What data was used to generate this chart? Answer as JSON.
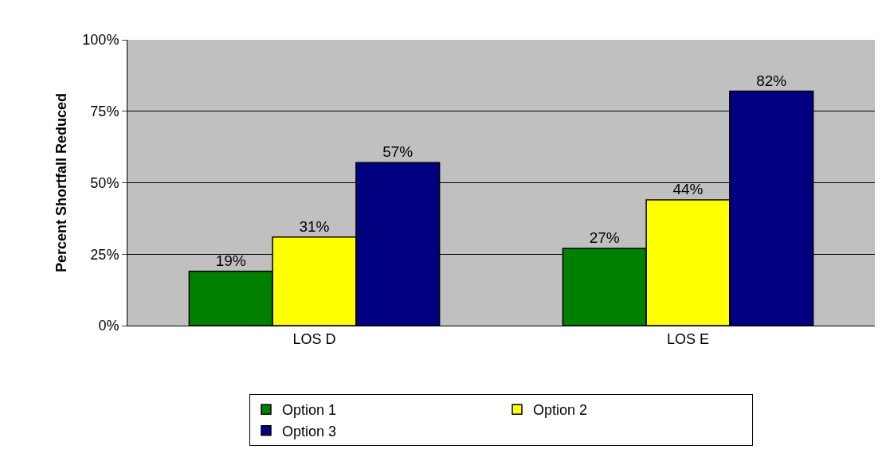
{
  "chart_data": {
    "type": "bar",
    "ylabel": "Percent Shortfall Reduced",
    "categories": [
      "LOS D",
      "LOS E"
    ],
    "series": [
      {
        "name": "Option 1",
        "color": "#008000",
        "values": [
          19,
          27
        ],
        "value_labels": [
          "19%",
          "27%"
        ]
      },
      {
        "name": "Option 2",
        "color": "#ffff00",
        "values": [
          31,
          44
        ],
        "value_labels": [
          "31%",
          "44%"
        ]
      },
      {
        "name": "Option 3",
        "color": "#000080",
        "values": [
          57,
          82
        ],
        "value_labels": [
          "57%",
          "82%"
        ]
      }
    ],
    "ylim": [
      0,
      100
    ],
    "yticks": [
      {
        "value": 0,
        "label": "0%"
      },
      {
        "value": 25,
        "label": "25%"
      },
      {
        "value": 50,
        "label": "50%"
      },
      {
        "value": 75,
        "label": "75%"
      },
      {
        "value": 100,
        "label": "100%"
      }
    ],
    "grid": "y",
    "legend": "bottom"
  }
}
